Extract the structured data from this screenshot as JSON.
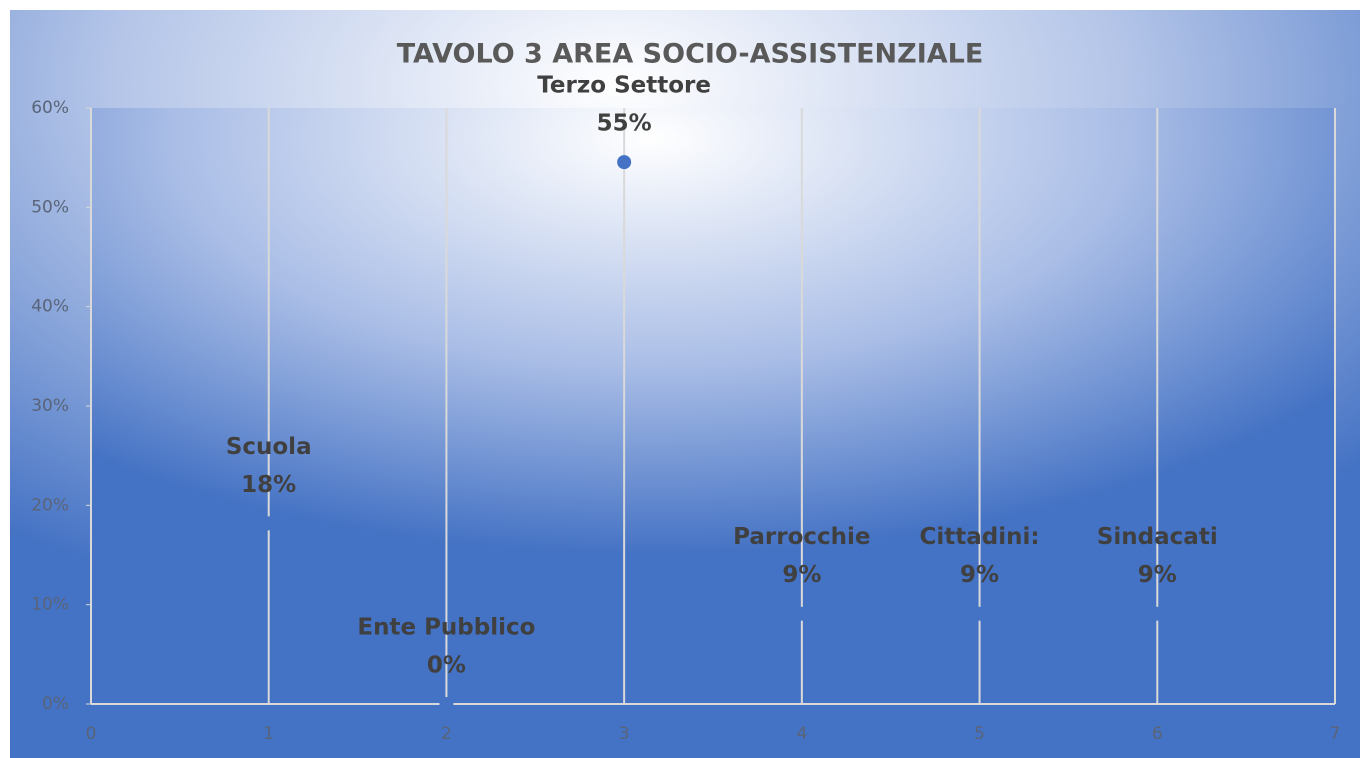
{
  "chart_data": {
    "type": "scatter",
    "title": "TAVOLO 3 AREA SOCIO-ASSISTENZIALE",
    "x": [
      1,
      2,
      3,
      4,
      5,
      6
    ],
    "values": [
      18.18,
      0,
      54.55,
      9.09,
      9.09,
      9.09
    ],
    "labels": [
      "Scuola",
      "Ente Pubblico",
      "Terzo Settore",
      "Parrocchie",
      "Cittadini:",
      "Sindacati"
    ],
    "value_labels": [
      "18%",
      "0%",
      "55%",
      "9%",
      "9%",
      "9%"
    ],
    "color": "#4472c4",
    "xlim": [
      0,
      7
    ],
    "xticks": [
      0,
      1,
      2,
      3,
      4,
      5,
      6,
      7
    ],
    "ylim": [
      0,
      60
    ],
    "yticks": [
      {
        "value": 0,
        "label": "0%"
      },
      {
        "value": 10,
        "label": "10%"
      },
      {
        "value": 20,
        "label": "20%"
      },
      {
        "value": 30,
        "label": "30%"
      },
      {
        "value": 40,
        "label": "40%"
      },
      {
        "value": 50,
        "label": "50%"
      },
      {
        "value": 60,
        "label": "60%"
      }
    ],
    "grid": "x"
  }
}
